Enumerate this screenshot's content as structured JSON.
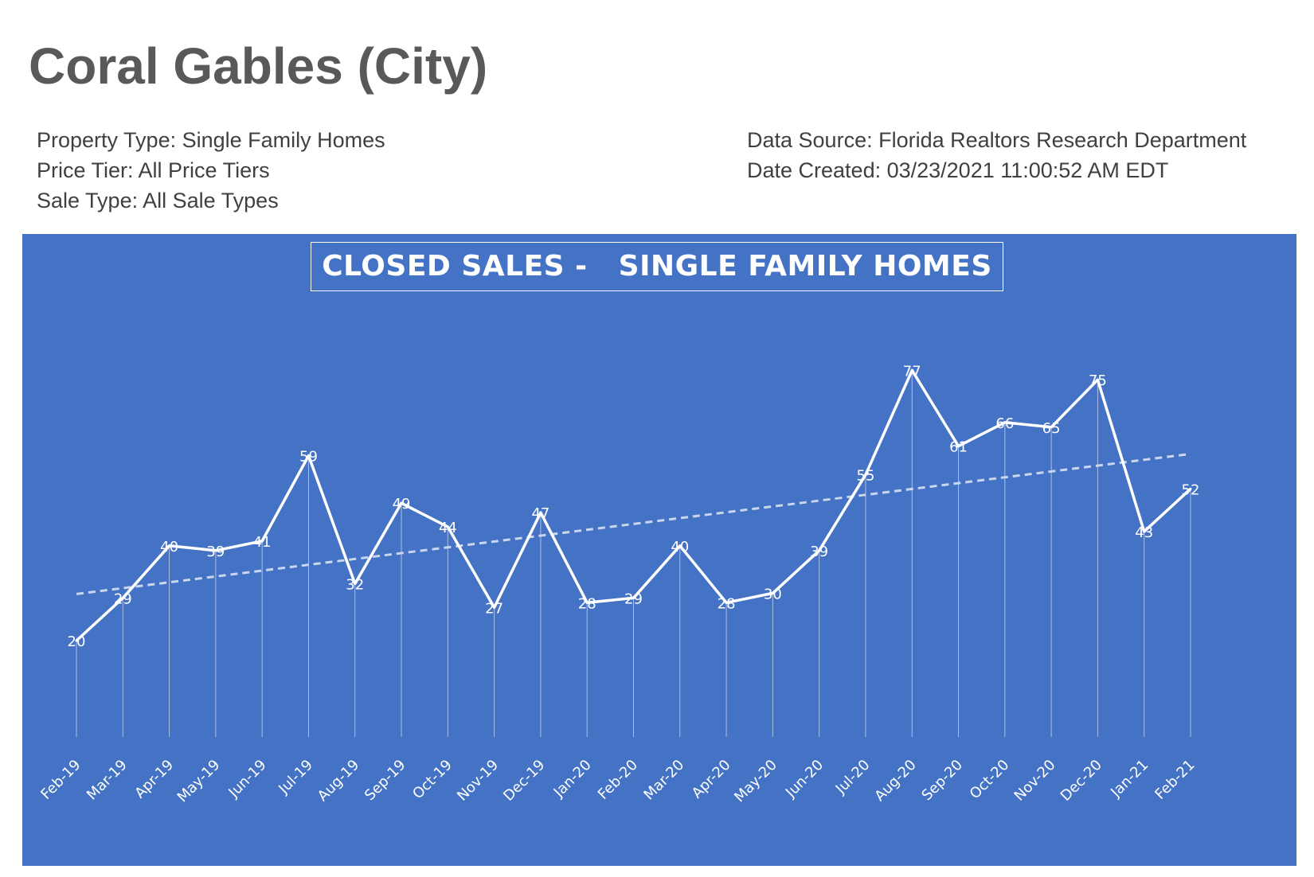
{
  "page": {
    "title": "Coral Gables (City)",
    "meta_left": [
      "Property Type: Single Family Homes",
      "Price Tier: All Price Tiers",
      "Sale Type: All Sale Types"
    ],
    "meta_right": [
      "Data Source: Florida Realtors Research Department",
      "Date Created: 03/23/2021 11:00:52 AM EDT"
    ]
  },
  "colors": {
    "panel_background": "#4472c4",
    "line": "#ffffff",
    "trendline": "#c9d6ee"
  },
  "chart_data": {
    "type": "line",
    "title": "CLOSED SALES -   SINGLE FAMILY HOMES",
    "xlabel": "",
    "ylabel": "",
    "categories": [
      "Feb-19",
      "Mar-19",
      "Apr-19",
      "May-19",
      "Jun-19",
      "Jul-19",
      "Aug-19",
      "Sep-19",
      "Oct-19",
      "Nov-19",
      "Dec-19",
      "Jan-20",
      "Feb-20",
      "Mar-20",
      "Apr-20",
      "May-20",
      "Jun-20",
      "Jul-20",
      "Aug-20",
      "Sep-20",
      "Oct-20",
      "Nov-20",
      "Dec-20",
      "Jan-21",
      "Feb-21"
    ],
    "series": [
      {
        "values": [
          20,
          29,
          40,
          39,
          41,
          59,
          32,
          49,
          44,
          27,
          47,
          28,
          29,
          40,
          28,
          30,
          39,
          55,
          77,
          61,
          66,
          65,
          75,
          43,
          52
        ]
      }
    ],
    "trendline": {
      "type": "linear",
      "style": "dashed"
    },
    "data_labels": true,
    "drop_lines": true,
    "grid": false,
    "legend": "none"
  }
}
